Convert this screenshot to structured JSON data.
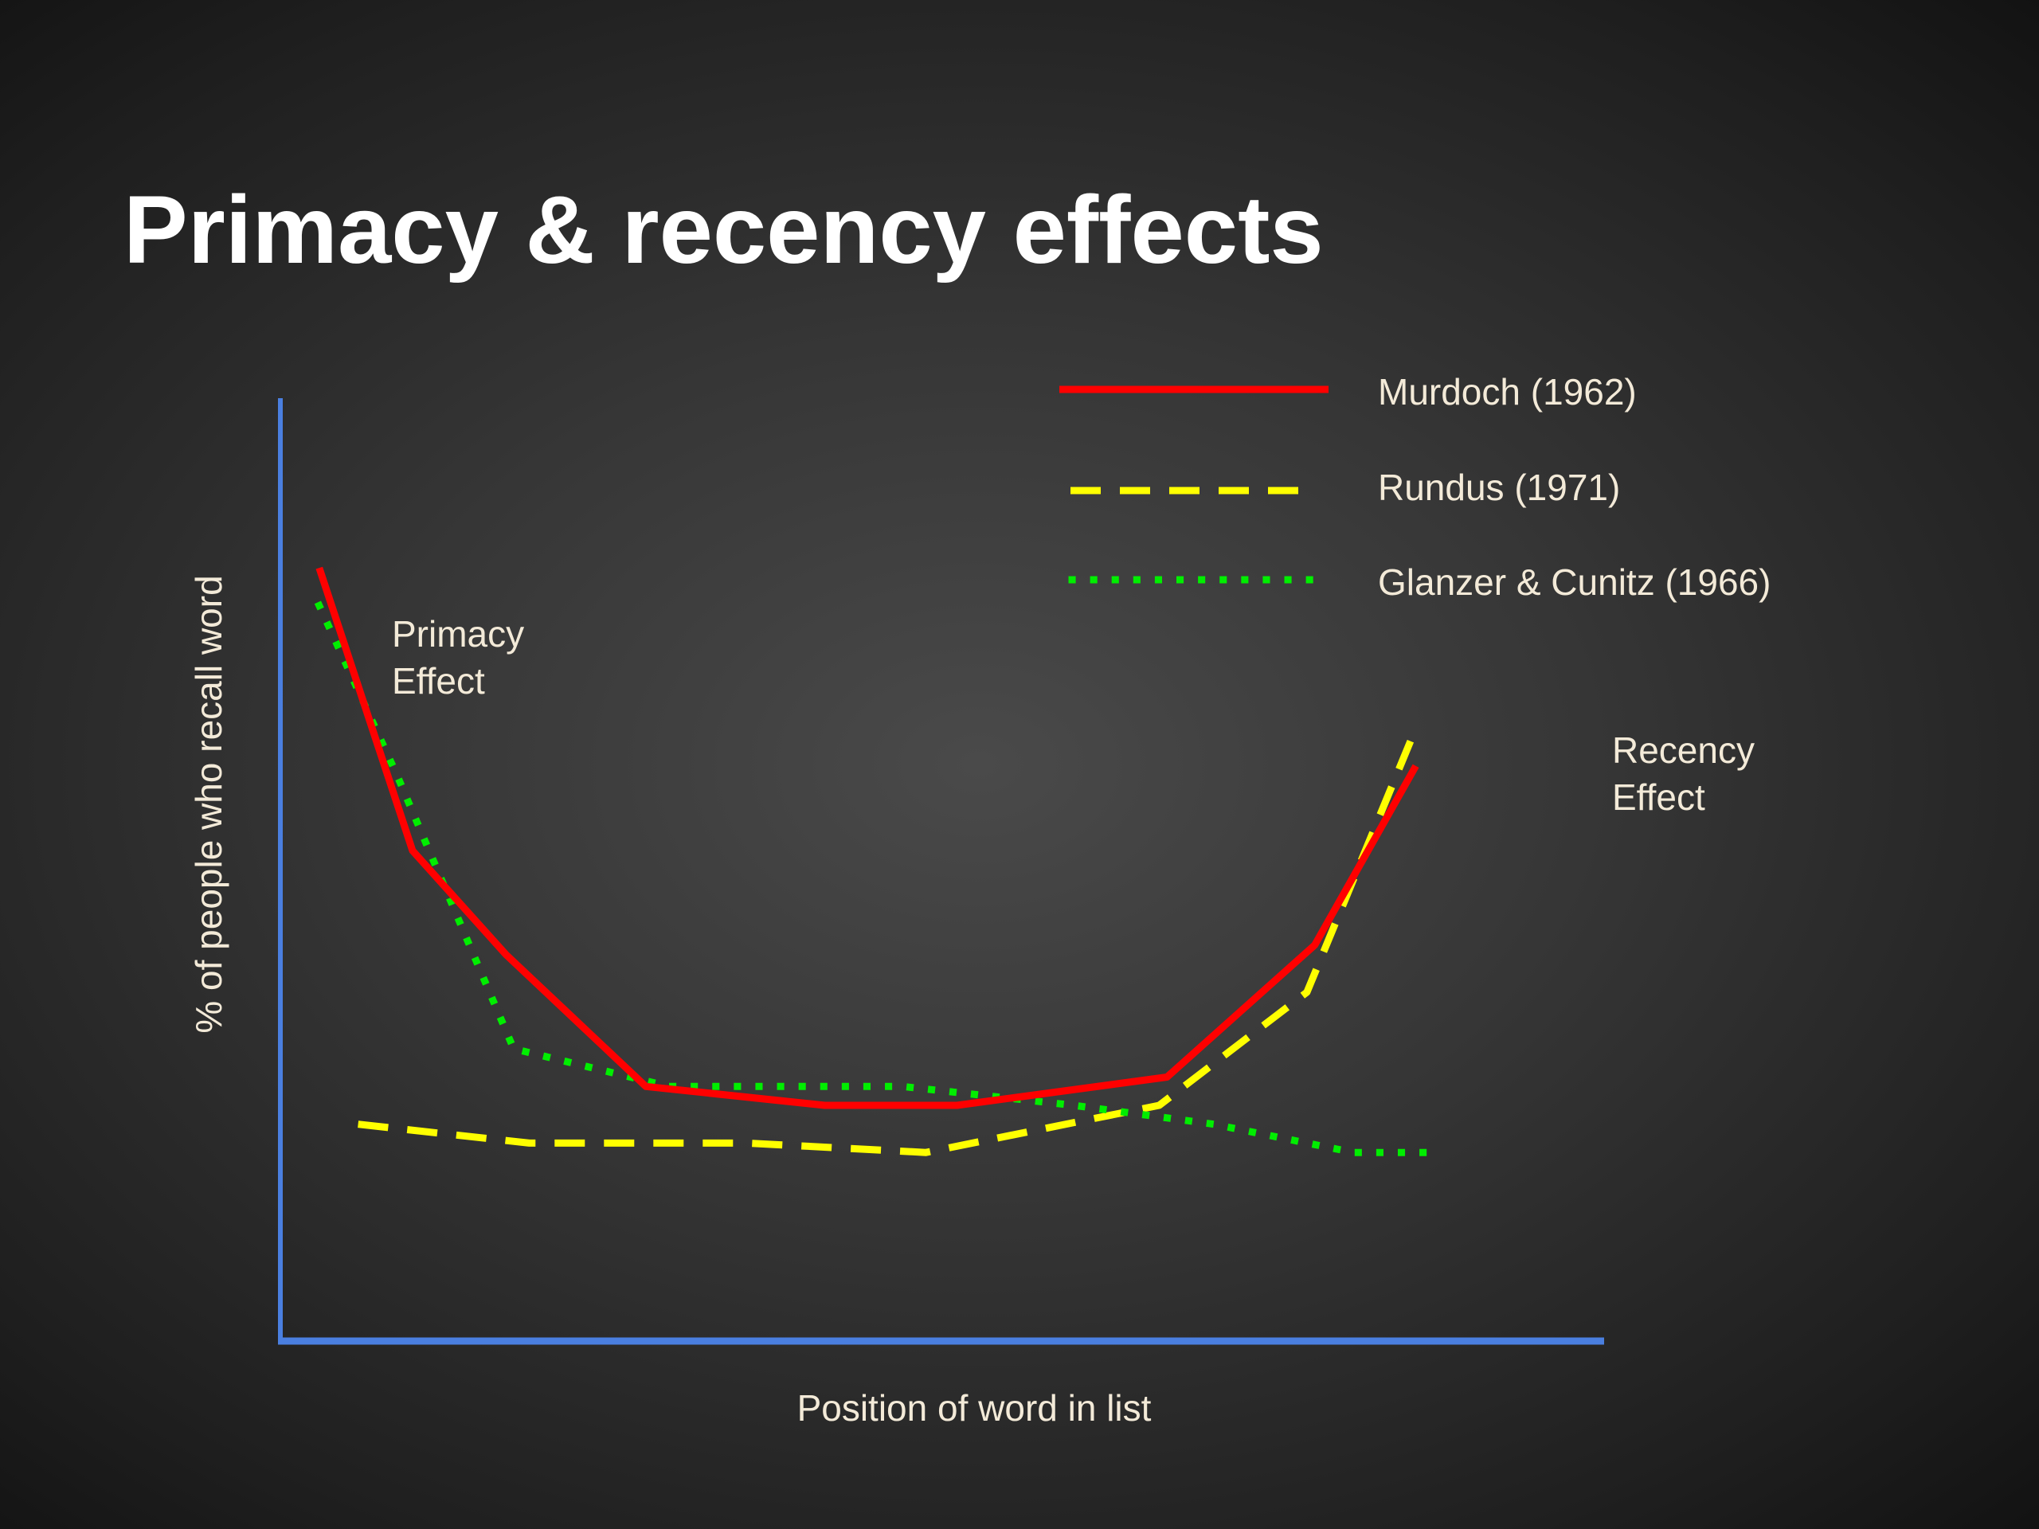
{
  "slide": {
    "title": "Primacy & recency effects"
  },
  "colors": {
    "background": "#333333",
    "axis": "#4a7fe0",
    "text": "#f3ead8",
    "title": "#ffffff"
  },
  "chart_data": {
    "type": "line",
    "xlabel": "Position of word in list",
    "ylabel": "% of people who recall word",
    "xlim": [
      0,
      17
    ],
    "ylim": [
      0,
      100
    ],
    "grid": false,
    "legend_position": "top-right",
    "series": [
      {
        "name": "Murdoch (1962)",
        "color": "#ff0000",
        "style": "solid",
        "x": [
          0.5,
          1.7,
          2.9,
          4.7,
          7.0,
          8.7,
          11.4,
          13.3,
          14.6
        ],
        "y": [
          82,
          52,
          41,
          27,
          25,
          25,
          28,
          42,
          61
        ]
      },
      {
        "name": "Rundus (1971)",
        "color": "#ffff00",
        "style": "dashed",
        "x": [
          1.0,
          3.2,
          6.0,
          8.3,
          11.3,
          13.2,
          14.6
        ],
        "y": [
          23,
          21,
          21,
          20,
          25,
          37,
          65
        ]
      },
      {
        "name": "Glanzer & Cunitz (1966)",
        "color": "#00ee00",
        "style": "dotted",
        "x": [
          0.5,
          1.5,
          3.0,
          5.0,
          8.0,
          10.2,
          12.0,
          13.8,
          14.8
        ],
        "y": [
          78,
          60,
          31,
          27,
          27,
          25,
          23,
          20,
          20
        ]
      }
    ],
    "annotations": [
      {
        "label_line1": "Primacy",
        "label_line2": "Effect",
        "x": 1.25,
        "y": 71
      },
      {
        "label_line1": "Recency",
        "label_line2": "Effect",
        "x": 14.9,
        "y": 59
      }
    ]
  }
}
